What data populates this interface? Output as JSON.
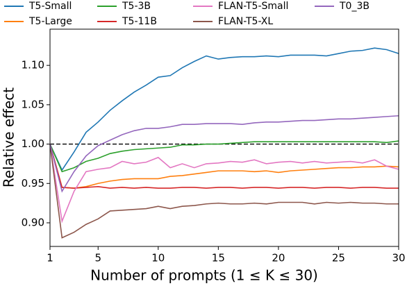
{
  "chart_data": {
    "type": "line",
    "x_label": "Number of prompts (1 ≤ K ≤ 30)",
    "y_label": "Relative effect",
    "x": [
      1,
      2,
      3,
      4,
      5,
      6,
      7,
      8,
      9,
      10,
      11,
      12,
      13,
      14,
      15,
      16,
      17,
      18,
      19,
      20,
      21,
      22,
      23,
      24,
      25,
      26,
      27,
      28,
      29,
      30
    ],
    "series": [
      {
        "name": "T5-Small",
        "color": "#1f77b4",
        "values": [
          1.0,
          0.967,
          0.99,
          1.015,
          1.028,
          1.043,
          1.055,
          1.066,
          1.075,
          1.085,
          1.087,
          1.097,
          1.105,
          1.112,
          1.108,
          1.11,
          1.111,
          1.111,
          1.112,
          1.111,
          1.113,
          1.113,
          1.113,
          1.112,
          1.115,
          1.118,
          1.119,
          1.122,
          1.12,
          1.115
        ]
      },
      {
        "name": "T5-Large",
        "color": "#ff7f0e",
        "values": [
          1.0,
          0.945,
          0.944,
          0.946,
          0.95,
          0.953,
          0.955,
          0.956,
          0.956,
          0.956,
          0.959,
          0.96,
          0.962,
          0.964,
          0.966,
          0.966,
          0.966,
          0.965,
          0.966,
          0.964,
          0.966,
          0.967,
          0.968,
          0.969,
          0.97,
          0.97,
          0.971,
          0.971,
          0.972,
          0.971
        ]
      },
      {
        "name": "T5-3B",
        "color": "#2ca02c",
        "values": [
          1.0,
          0.965,
          0.97,
          0.978,
          0.982,
          0.988,
          0.991,
          0.993,
          0.994,
          0.995,
          0.996,
          0.999,
          0.999,
          1.0,
          1.0,
          1.001,
          1.002,
          1.003,
          1.003,
          1.003,
          1.003,
          1.003,
          1.003,
          1.003,
          1.003,
          1.003,
          1.003,
          1.003,
          1.002,
          1.004
        ]
      },
      {
        "name": "T5-11B",
        "color": "#d62728",
        "values": [
          1.0,
          0.945,
          0.944,
          0.945,
          0.946,
          0.944,
          0.945,
          0.944,
          0.945,
          0.944,
          0.944,
          0.945,
          0.945,
          0.944,
          0.945,
          0.945,
          0.944,
          0.945,
          0.945,
          0.944,
          0.945,
          0.945,
          0.944,
          0.945,
          0.945,
          0.944,
          0.945,
          0.945,
          0.944,
          0.944
        ]
      },
      {
        "name": "FLAN-T5-Small",
        "color": "#e377c2",
        "values": [
          1.0,
          0.902,
          0.94,
          0.965,
          0.968,
          0.97,
          0.978,
          0.975,
          0.977,
          0.983,
          0.97,
          0.975,
          0.97,
          0.975,
          0.976,
          0.978,
          0.977,
          0.98,
          0.975,
          0.977,
          0.978,
          0.976,
          0.978,
          0.976,
          0.977,
          0.978,
          0.976,
          0.98,
          0.972,
          0.968
        ]
      },
      {
        "name": "FLAN-T5-XL",
        "color": "#8c564b",
        "values": [
          1.0,
          0.881,
          0.888,
          0.898,
          0.905,
          0.915,
          0.916,
          0.917,
          0.918,
          0.921,
          0.918,
          0.921,
          0.922,
          0.924,
          0.925,
          0.924,
          0.924,
          0.925,
          0.924,
          0.926,
          0.926,
          0.926,
          0.924,
          0.926,
          0.925,
          0.926,
          0.925,
          0.925,
          0.924,
          0.924
        ]
      },
      {
        "name": "T0_3B",
        "color": "#9467bd",
        "values": [
          1.0,
          0.94,
          0.965,
          0.985,
          0.998,
          1.005,
          1.012,
          1.017,
          1.02,
          1.02,
          1.022,
          1.025,
          1.025,
          1.026,
          1.026,
          1.026,
          1.025,
          1.027,
          1.028,
          1.028,
          1.029,
          1.03,
          1.03,
          1.031,
          1.032,
          1.032,
          1.033,
          1.034,
          1.035,
          1.036
        ]
      }
    ],
    "xlim": [
      1,
      30
    ],
    "xticks": [
      1,
      5,
      10,
      15,
      20,
      25,
      30
    ],
    "ylim": [
      0.87,
      1.146
    ],
    "yticks": [
      {
        "value": 0.9,
        "label": "0.90"
      },
      0.95,
      {
        "value": 1.0,
        "label": "1.00"
      },
      1.05,
      {
        "value": 1.1,
        "label": "1.10"
      }
    ],
    "reference_line": 1.0,
    "legend": "top",
    "legend_columns": 4
  }
}
